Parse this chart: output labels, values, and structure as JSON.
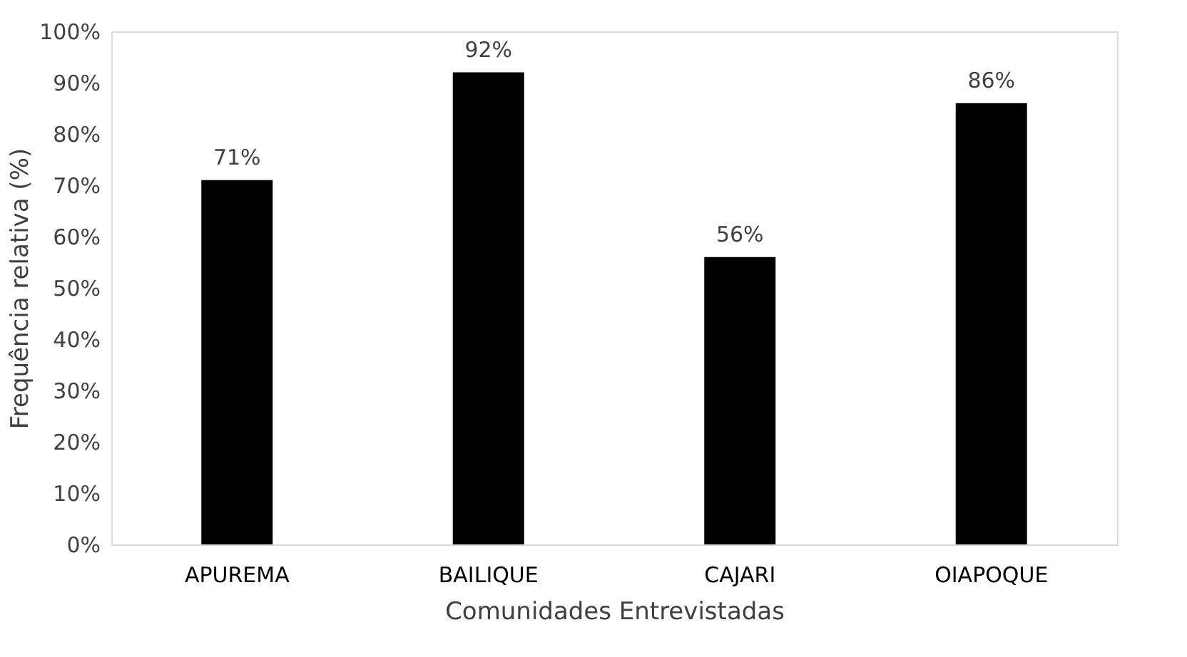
{
  "chart_data": {
    "type": "bar",
    "xlabel": "Comunidades Entrevistadas",
    "ylabel": "Frequência relativa (%)",
    "categories": [
      "APUREMA",
      "BAILIQUE",
      "CAJARI",
      "OIAPOQUE"
    ],
    "values": [
      71,
      92,
      56,
      86
    ],
    "color": "#000000",
    "value_labels": [
      "71%",
      "92%",
      "56%",
      "86%"
    ],
    "ylim": [
      0,
      100
    ],
    "yticks": [
      {
        "value": 0,
        "label": "0%"
      },
      {
        "value": 10,
        "label": "10%"
      },
      {
        "value": 20,
        "label": "20%"
      },
      {
        "value": 30,
        "label": "30%"
      },
      {
        "value": 40,
        "label": "40%"
      },
      {
        "value": 50,
        "label": "50%"
      },
      {
        "value": 60,
        "label": "60%"
      },
      {
        "value": 70,
        "label": "70%"
      },
      {
        "value": 80,
        "label": "80%"
      },
      {
        "value": 90,
        "label": "90%"
      },
      {
        "value": 100,
        "label": "100%"
      }
    ],
    "grid": false
  }
}
